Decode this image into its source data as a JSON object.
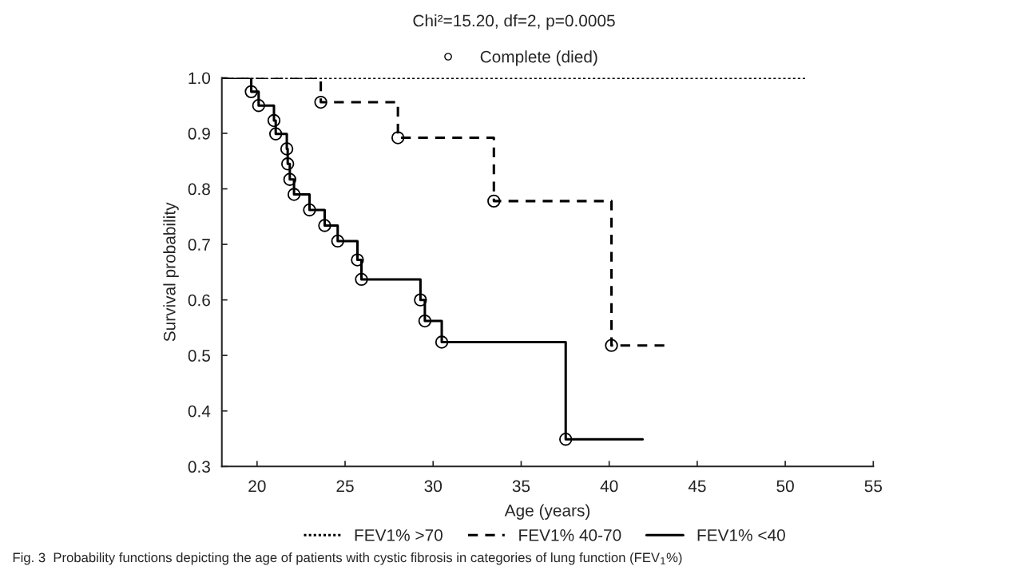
{
  "chart_data": {
    "type": "step",
    "title": "Chi²=15.20, df=2, p=0.0005",
    "xlabel": "Age (years)",
    "ylabel": "Survival probability",
    "xlim": [
      18,
      55
    ],
    "xticks": [
      20,
      25,
      30,
      35,
      40,
      45,
      50,
      55
    ],
    "ylim": [
      0.3,
      1.0
    ],
    "yticks": [
      {
        "value": 0.3,
        "label": "0.3"
      },
      {
        "value": 0.4,
        "label": "0.4"
      },
      {
        "value": 0.5,
        "label": "0.5"
      },
      {
        "value": 0.6,
        "label": "0.6"
      },
      {
        "value": 0.7,
        "label": "0.7"
      },
      {
        "value": 0.8,
        "label": "0.8"
      },
      {
        "value": 0.9,
        "label": "0.9"
      },
      {
        "value": 1.0,
        "label": "1.0"
      }
    ],
    "grid": false,
    "legend": "bottom",
    "series": [
      {
        "name": "FEV1% >70",
        "color": "#000000",
        "line_style": "dotted",
        "x": [
          18,
          51.2
        ],
        "values": [
          1.0,
          1.0
        ]
      },
      {
        "name": "FEV1% 40-70",
        "color": "#000000",
        "line_style": "dashed",
        "x": [
          18,
          23.62,
          28.0,
          33.45,
          40.13,
          43.14
        ],
        "values": [
          1.0,
          0.956,
          0.892,
          0.778,
          0.518,
          0.518
        ]
      },
      {
        "name": "FEV1% <40",
        "color": "#000000",
        "line_style": "solid",
        "x": [
          18,
          19.67,
          20.09,
          20.96,
          21.06,
          21.69,
          21.74,
          21.86,
          22.1,
          22.98,
          23.84,
          24.58,
          25.7,
          25.93,
          29.28,
          29.53,
          30.49,
          37.53,
          41.9
        ],
        "values": [
          1.0,
          0.975,
          0.95,
          0.923,
          0.899,
          0.872,
          0.845,
          0.817,
          0.79,
          0.762,
          0.734,
          0.706,
          0.672,
          0.637,
          0.6,
          0.562,
          0.524,
          0.349,
          0.349
        ]
      },
      {
        "name": "Complete (died)",
        "type": "scatter",
        "marker": "circle",
        "color": "#000000",
        "x": [
          23.62,
          28.0,
          33.45,
          40.13,
          19.67,
          20.09,
          20.96,
          21.06,
          21.69,
          21.74,
          21.86,
          22.1,
          22.98,
          23.84,
          24.58,
          25.7,
          25.93,
          29.28,
          29.53,
          30.49,
          37.53
        ],
        "values": [
          0.956,
          0.892,
          0.778,
          0.518,
          0.975,
          0.95,
          0.923,
          0.899,
          0.872,
          0.845,
          0.817,
          0.79,
          0.762,
          0.734,
          0.706,
          0.672,
          0.637,
          0.6,
          0.562,
          0.524,
          0.349
        ]
      }
    ],
    "annotations": [
      "Fig. 3  Probability functions depicting the age of patients with cystic fibrosis in categories of lung function (FEV$_{1}$%)"
    ]
  }
}
